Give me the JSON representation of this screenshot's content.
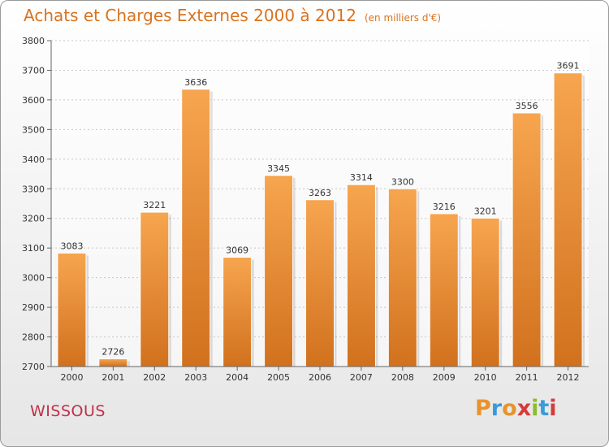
{
  "title": "Achats et Charges Externes 2000 à 2012",
  "subtitle": "(en milliers d'€)",
  "location": "WISSOUS",
  "brand": {
    "letters": [
      "P",
      "r",
      "o",
      "x",
      "i",
      "t",
      "i"
    ],
    "colors": [
      "#e8932a",
      "#3a9bd8",
      "#e8932a",
      "#d83a3a",
      "#8cbc2c",
      "#3a9bd8",
      "#d83a3a"
    ]
  },
  "colors": {
    "bar_top": "#f7a54f",
    "bar_bottom": "#d1711e",
    "title": "#d9731f",
    "location": "#c0304a"
  },
  "chart_data": {
    "type": "bar",
    "categories": [
      "2000",
      "2001",
      "2002",
      "2003",
      "2004",
      "2005",
      "2006",
      "2007",
      "2008",
      "2009",
      "2010",
      "2011",
      "2012"
    ],
    "values": [
      3083,
      2726,
      3221,
      3636,
      3069,
      3345,
      3263,
      3314,
      3300,
      3216,
      3201,
      3556,
      3691
    ],
    "ylim": [
      2700,
      3800
    ],
    "yticks": [
      2700,
      2800,
      2900,
      3000,
      3100,
      3200,
      3300,
      3400,
      3500,
      3600,
      3700,
      3800
    ],
    "grid": true
  }
}
